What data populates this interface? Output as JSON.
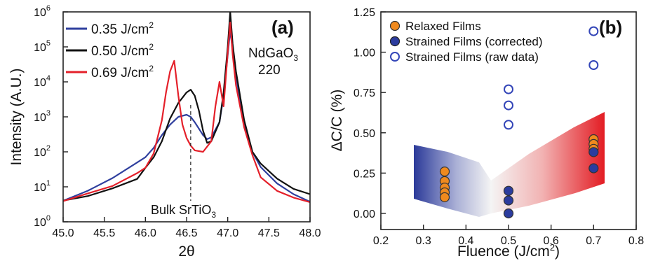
{
  "chart_data": [
    {
      "panel": "(a)",
      "type": "line",
      "xlabel": "2θ",
      "ylabel": "Intensity (A.U.)",
      "xlim": [
        45.0,
        48.0
      ],
      "ylim": [
        1,
        1000000
      ],
      "y_scale": "log",
      "x_ticks": [
        "45.0",
        "45.5",
        "46.0",
        "46.5",
        "47.0",
        "47.5",
        "48.0"
      ],
      "y_ticks": [
        {
          "base": "10",
          "exp": "0",
          "value": 1
        },
        {
          "base": "10",
          "exp": "1",
          "value": 10
        },
        {
          "base": "10",
          "exp": "2",
          "value": 100
        },
        {
          "base": "10",
          "exp": "3",
          "value": 1000
        },
        {
          "base": "10",
          "exp": "4",
          "value": 10000
        },
        {
          "base": "10",
          "exp": "5",
          "value": 100000
        },
        {
          "base": "10",
          "exp": "6",
          "value": 1000000
        }
      ],
      "grid": false,
      "legend_position": "top-left",
      "annotations": {
        "substrate_line1": "NdGaO",
        "substrate_sub": "3",
        "substrate_line2": "220",
        "bulk_text": "Bulk SrTiO",
        "bulk_sub": "3",
        "bulk_x": 46.55
      },
      "series": [
        {
          "name": "0.35 J/cm",
          "name_sup": "2",
          "color": "#2f3f9e",
          "x": [
            45.0,
            45.3,
            45.6,
            45.9,
            46.0,
            46.1,
            46.2,
            46.3,
            46.4,
            46.5,
            46.55,
            46.6,
            46.7,
            46.75,
            46.8,
            46.9,
            46.95,
            47.0,
            47.03,
            47.06,
            47.1,
            47.2,
            47.3,
            47.4,
            47.6,
            47.8,
            48.0
          ],
          "y": [
            4,
            7,
            15,
            40,
            70,
            130,
            300,
            600,
            1000,
            1150,
            1000,
            700,
            300,
            230,
            260,
            700,
            4000,
            60000,
            300000,
            80000,
            15000,
            600,
            100,
            40,
            15,
            8,
            5
          ]
        },
        {
          "name": "0.50 J/cm",
          "name_sup": "2",
          "color": "#111111",
          "x": [
            45.0,
            45.3,
            45.6,
            45.9,
            46.0,
            46.1,
            46.2,
            46.3,
            46.4,
            46.5,
            46.55,
            46.6,
            46.65,
            46.7,
            46.75,
            46.8,
            46.9,
            46.95,
            47.0,
            47.03,
            47.06,
            47.1,
            47.2,
            47.3,
            47.4,
            47.6,
            47.8,
            48.0
          ],
          "y": [
            4,
            6,
            11,
            22,
            35,
            70,
            200,
            900,
            2500,
            5000,
            6000,
            4000,
            1500,
            400,
            180,
            200,
            700,
            5000,
            100000,
            1000000,
            120000,
            20000,
            800,
            100,
            40,
            14,
            7,
            5
          ]
        },
        {
          "name": "0.69 J/cm",
          "name_sup": "2",
          "color": "#e4202a",
          "x": [
            45.0,
            45.3,
            45.6,
            45.9,
            46.0,
            46.1,
            46.2,
            46.25,
            46.3,
            46.35,
            46.4,
            46.45,
            46.5,
            46.55,
            46.6,
            46.7,
            46.8,
            46.85,
            46.9,
            46.95,
            47.0,
            47.03,
            47.06,
            47.1,
            47.2,
            47.3,
            47.4,
            47.6,
            47.8,
            48.0
          ],
          "y": [
            4,
            6,
            9,
            20,
            35,
            90,
            800,
            5000,
            20000,
            40000,
            4000,
            600,
            250,
            150,
            110,
            100,
            200,
            2000,
            10000,
            2000,
            70000,
            500000,
            60000,
            8000,
            500,
            80,
            25,
            10,
            6,
            4
          ]
        }
      ]
    },
    {
      "panel": "(b)",
      "type": "scatter",
      "xlabel": "Fluence (J/cm",
      "xlabel_sup": "2",
      "xlabel_end": ")",
      "ylabel": "ΔC/C (%)",
      "xlim": [
        0.2,
        0.8
      ],
      "ylim": [
        -0.1,
        1.25
      ],
      "x_ticks": [
        "0.2",
        "0.3",
        "0.4",
        "0.5",
        "0.6",
        "0.7",
        "0.8"
      ],
      "y_ticks": [
        "0.00",
        "0.25",
        "0.50",
        "0.75",
        "1.00",
        "1.25"
      ],
      "grid": false,
      "legend_position": "top-left",
      "series": [
        {
          "name": "Relaxed Films",
          "marker": "filled",
          "color": "#f08a1e",
          "x": [
            0.35,
            0.35,
            0.35,
            0.35,
            0.35,
            0.7,
            0.7,
            0.7
          ],
          "y": [
            0.26,
            0.2,
            0.16,
            0.13,
            0.1,
            0.46,
            0.43,
            0.4
          ]
        },
        {
          "name": "Strained Films (corrected)",
          "marker": "filled",
          "color": "#2b3c9e",
          "x": [
            0.5,
            0.5,
            0.5,
            0.7,
            0.7
          ],
          "y": [
            0.14,
            0.08,
            0.0,
            0.38,
            0.28
          ]
        },
        {
          "name": "Strained Films (raw data)",
          "marker": "open",
          "color": "#3345b8",
          "x": [
            0.5,
            0.5,
            0.5,
            0.7,
            0.7
          ],
          "y": [
            0.77,
            0.67,
            0.55,
            1.13,
            0.92
          ]
        }
      ]
    }
  ]
}
